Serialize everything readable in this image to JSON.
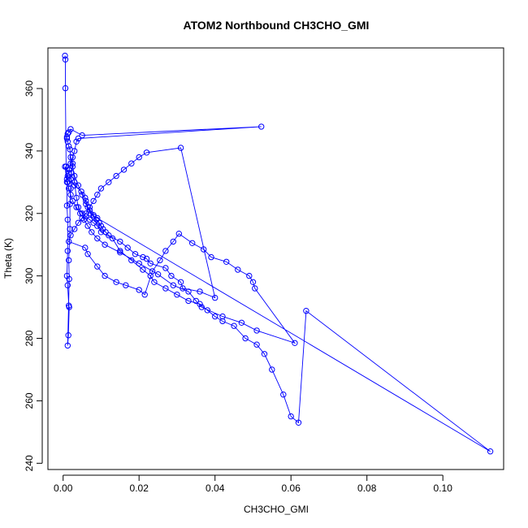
{
  "chart_data": {
    "type": "line",
    "title": "ATOM2 Northbound CH3CHO_GMI",
    "xlabel": "CH3CHO_GMI",
    "ylabel": "Theta (K)",
    "xlim": [
      -0.004,
      0.116
    ],
    "ylim": [
      238,
      373
    ],
    "x_ticks": [
      0.0,
      0.02,
      0.04,
      0.06,
      0.08,
      0.1
    ],
    "x_tick_labels": [
      "0.00",
      "0.02",
      "0.04",
      "0.06",
      "0.08",
      "0.10"
    ],
    "y_ticks": [
      240,
      260,
      280,
      300,
      320,
      340,
      360
    ],
    "y_tick_labels": [
      "240",
      "260",
      "280",
      "300",
      "320",
      "340",
      "360"
    ],
    "grid": false,
    "colors": {
      "series": "#0000ff",
      "axes": "#000000",
      "background": "#ffffff"
    },
    "series": [
      {
        "marker": "open-circle",
        "x": [
          0.0005,
          0.0006,
          0.0006,
          0.0008,
          0.001,
          0.001,
          0.0012,
          0.0012,
          0.001,
          0.0012,
          0.0015,
          0.0016,
          0.0014,
          0.0012,
          0.0016,
          0.0015,
          0.0018,
          0.0018,
          0.002,
          0.0022,
          0.0025,
          0.003,
          0.0035,
          0.004,
          0.005,
          0.006,
          0.007,
          0.008,
          0.009,
          0.01,
          0.013,
          0.015,
          0.018,
          0.021,
          0.023,
          0.024,
          0.027,
          0.03,
          0.033,
          0.036,
          0.038,
          0.04,
          0.042,
          0.045,
          0.048,
          0.051,
          0.053,
          0.055,
          0.058,
          0.06,
          0.062,
          0.064,
          0.1125,
          0.009,
          0.008,
          0.007,
          0.006,
          0.005,
          0.004,
          0.003,
          0.0025,
          0.002,
          0.0018,
          0.0015,
          0.0012,
          0.001,
          0.001,
          0.0012,
          0.0015,
          0.002,
          0.005,
          0.0522,
          0.004,
          0.0035,
          0.003,
          0.0025,
          0.002,
          0.0016,
          0.0012,
          0.001,
          0.0005,
          0.0015,
          0.002,
          0.003,
          0.0048,
          0.0058,
          0.006,
          0.0065,
          0.0072,
          0.008,
          0.0088,
          0.0095,
          0.01,
          0.0105,
          0.0112,
          0.012,
          0.015,
          0.017,
          0.019,
          0.021,
          0.022,
          0.023,
          0.027,
          0.0285,
          0.031,
          0.0315,
          0.036,
          0.04,
          0.031,
          0.022,
          0.02,
          0.018,
          0.016,
          0.014,
          0.012,
          0.01,
          0.009,
          0.008,
          0.007,
          0.006,
          0.005,
          0.004,
          0.003,
          0.002,
          0.0015,
          0.0058,
          0.0065,
          0.009,
          0.011,
          0.014,
          0.0165,
          0.02,
          0.0215,
          0.0235,
          0.0255,
          0.027,
          0.029,
          0.0305,
          0.034,
          0.037,
          0.039,
          0.043,
          0.046,
          0.049,
          0.05,
          0.0505,
          0.061,
          0.051,
          0.047,
          0.042,
          0.0365,
          0.035,
          0.033,
          0.029,
          0.025,
          0.02,
          0.015,
          0.011,
          0.009,
          0.0075,
          0.0065,
          0.0055,
          0.0045,
          0.0035,
          0.0025,
          0.002,
          0.0015,
          0.0012
        ],
        "y": [
          370.5,
          369.3,
          360.1,
          335.0,
          331.0,
          322.5,
          318.0,
          308.0,
          300.0,
          297.0,
          290.5,
          290.0,
          281.0,
          277.7,
          299.0,
          305.0,
          315.0,
          323.0,
          328.0,
          333.0,
          336.0,
          330.0,
          325.0,
          322.0,
          320.0,
          319.0,
          318.0,
          317.0,
          316.0,
          314.0,
          312.0,
          308.0,
          305.0,
          302.0,
          300.0,
          298.0,
          296.0,
          294.0,
          292.0,
          291.0,
          289.0,
          287.0,
          285.5,
          284.0,
          280.0,
          278.0,
          275.0,
          270.0,
          262.0,
          255.0,
          253.0,
          288.8,
          243.8,
          318.5,
          319.0,
          321.0,
          323.0,
          326.0,
          329.0,
          332.0,
          335.0,
          338.0,
          340.5,
          341.5,
          343.0,
          344.0,
          344.5,
          345.5,
          346.0,
          347.0,
          345.0,
          347.8,
          344.0,
          343.0,
          340.0,
          338.0,
          336.0,
          334.0,
          332.0,
          330.0,
          335.0,
          333.0,
          331.0,
          329.0,
          327.0,
          325.0,
          324.0,
          322.0,
          320.0,
          319.5,
          318.0,
          317.0,
          316.0,
          315.0,
          314.0,
          313.0,
          311.0,
          309.0,
          307.0,
          306.0,
          305.5,
          304.0,
          302.5,
          300.0,
          298.0,
          296.0,
          295.0,
          293.0,
          341.0,
          339.5,
          338.0,
          336.0,
          334.0,
          332.0,
          330.0,
          328.0,
          326.0,
          324.0,
          322.0,
          320.0,
          318.5,
          317.0,
          315.0,
          313.0,
          311.0,
          309.0,
          307.0,
          303.0,
          300.0,
          298.0,
          297.0,
          295.5,
          294.0,
          301.5,
          305.0,
          308.0,
          311.0,
          313.5,
          310.5,
          308.5,
          306.0,
          304.5,
          302.0,
          300.0,
          298.0,
          296.0,
          278.5,
          282.5,
          285.0,
          287.0,
          290.0,
          292.0,
          295.0,
          297.0,
          300.5,
          304.0,
          307.5,
          310.0,
          312.0,
          314.0,
          316.0,
          318.0,
          320.0,
          322.0,
          324.0,
          326.0,
          328.0,
          330.0
        ]
      }
    ]
  }
}
